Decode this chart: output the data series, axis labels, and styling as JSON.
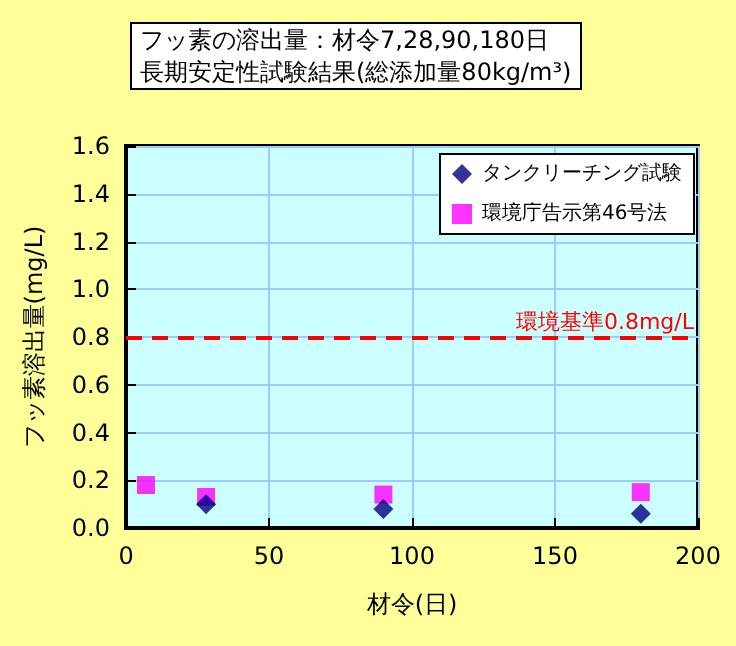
{
  "chart_data": {
    "type": "scatter",
    "title": "フッ素の溶出量：材令7,28,90,180日",
    "subtitle": "長期安定性試験結果(総添加量80kg/m³)",
    "xlabel": "材令(日)",
    "ylabel": "フッ素溶出量(mg/L)",
    "x": [
      7,
      28,
      90,
      180
    ],
    "series": [
      {
        "name": "タンクリーチング試験",
        "color": "#000080",
        "marker": "diamond",
        "values": [
          null,
          0.1,
          0.08,
          0.06
        ]
      },
      {
        "name": "環境庁告示第46号法",
        "color": "#ff00ff",
        "marker": "square",
        "values": [
          0.18,
          0.13,
          0.14,
          0.15
        ]
      }
    ],
    "xlim": [
      0,
      200
    ],
    "xticks": [
      0,
      50,
      100,
      150,
      200
    ],
    "ylim": [
      0,
      1.6
    ],
    "yticks": [
      {
        "value": 0,
        "label": "0.0"
      },
      {
        "value": 0.2,
        "label": "0.2"
      },
      {
        "value": 0.4,
        "label": "0.4"
      },
      {
        "value": 0.6,
        "label": "0.6"
      },
      {
        "value": 0.8,
        "label": "0.8"
      },
      {
        "value": 1.0,
        "label": "1.0"
      },
      {
        "value": 1.2,
        "label": "1.2"
      },
      {
        "value": 1.4,
        "label": "1.4"
      },
      {
        "value": 1.6,
        "label": "1.6"
      }
    ],
    "ref_lines": [
      {
        "axis": "y",
        "value": 0.8,
        "label": "環境基準0.8mg/L",
        "color": "#ff0000",
        "line_style": "dashed"
      }
    ],
    "grid": true,
    "legend": "top right"
  }
}
